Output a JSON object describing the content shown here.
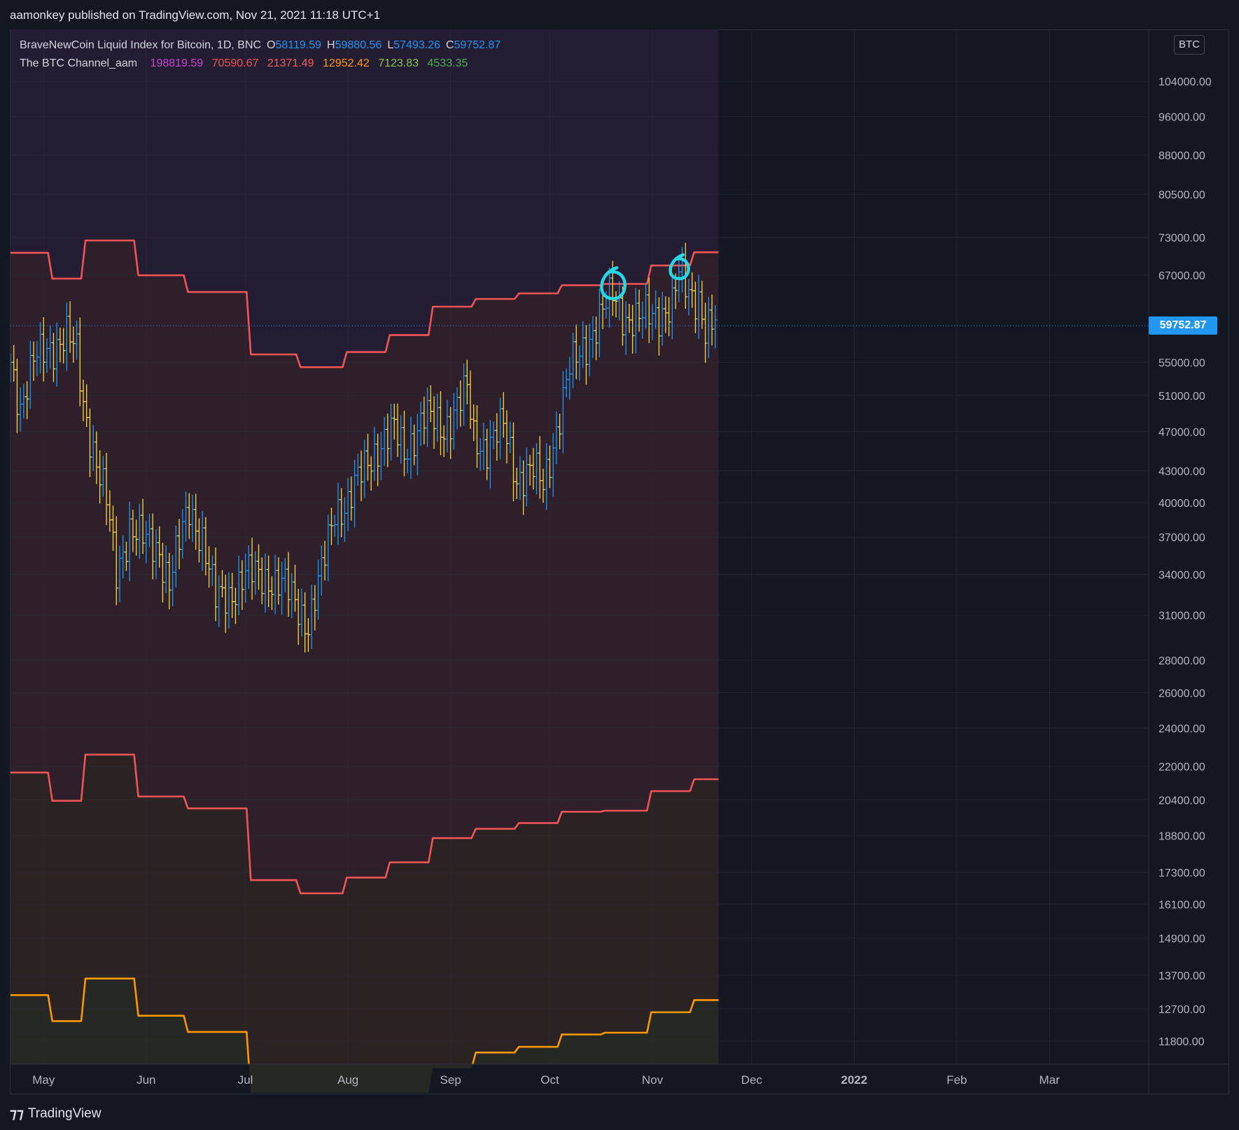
{
  "header": {
    "published": "aamonkey published on TradingView.com, Nov 21, 2021 11:18 UTC+1"
  },
  "legend": {
    "symbol": "BraveNewCoin Liquid Index for Bitcoin, 1D, BNC",
    "open_label": "O",
    "open": "58119.59",
    "high_label": "H",
    "high": "59880.56",
    "low_label": "L",
    "low": "57493.26",
    "close_label": "C",
    "close": "59752.87",
    "indicator_name": "The BTC Channel_aam",
    "indicator_values": [
      {
        "text": "198819.59",
        "color": "#c843d4"
      },
      {
        "text": "70590.67",
        "color": "#ef5350"
      },
      {
        "text": "21371.49",
        "color": "#f05f57"
      },
      {
        "text": "12952.42",
        "color": "#ff9800"
      },
      {
        "text": "7123.83",
        "color": "#8bc34a"
      },
      {
        "text": "4533.35",
        "color": "#4caf50"
      }
    ]
  },
  "currency_badge": "BTC",
  "last_price_tag": "59752.87",
  "footer": {
    "brand": "TradingView"
  },
  "colors": {
    "background": "#131722",
    "up_bar": "#2196f3",
    "down_bar": "#fdd835",
    "channel_red": "#f05454",
    "channel_orange": "#ff9800",
    "annotation": "#26d7e6"
  },
  "chart_data": {
    "type": "ohlc-bar",
    "scale": "log",
    "title": "BraveNewCoin Liquid Index for Bitcoin, 1D, BNC",
    "x_range": [
      "2021-04-21",
      "2022-03-31"
    ],
    "x_ticks": [
      {
        "date": "2021-05-01",
        "label": "May"
      },
      {
        "date": "2021-06-01",
        "label": "Jun"
      },
      {
        "date": "2021-07-01",
        "label": "Jul"
      },
      {
        "date": "2021-08-01",
        "label": "Aug"
      },
      {
        "date": "2021-09-01",
        "label": "Sep"
      },
      {
        "date": "2021-10-01",
        "label": "Oct"
      },
      {
        "date": "2021-11-01",
        "label": "Nov"
      },
      {
        "date": "2021-12-01",
        "label": "Dec"
      },
      {
        "date": "2022-01-01",
        "label": "2022"
      },
      {
        "date": "2022-02-01",
        "label": "Feb"
      },
      {
        "date": "2022-03-01",
        "label": "Mar"
      }
    ],
    "y_ticks": [
      104000,
      96000,
      88000,
      80500,
      73000,
      67000,
      55000,
      51000,
      47000,
      43000,
      40000,
      37000,
      34000,
      31000,
      28000,
      26000,
      24000,
      22000,
      20400,
      18800,
      17300,
      16100,
      14900,
      13700,
      12700,
      11800
    ],
    "y_range": [
      11200,
      117000
    ],
    "last_close": 59752.87,
    "price_path": [
      [
        "2021-04-21",
        55000
      ],
      [
        "2021-04-24",
        50000
      ],
      [
        "2021-04-28",
        55000
      ],
      [
        "2021-05-03",
        57000
      ],
      [
        "2021-05-08",
        58500
      ],
      [
        "2021-05-11",
        56000
      ],
      [
        "2021-05-13",
        50000
      ],
      [
        "2021-05-17",
        44000
      ],
      [
        "2021-05-20",
        40000
      ],
      [
        "2021-05-23",
        34000
      ],
      [
        "2021-05-27",
        38000
      ],
      [
        "2021-06-01",
        36500
      ],
      [
        "2021-06-05",
        36000
      ],
      [
        "2021-06-08",
        33500
      ],
      [
        "2021-06-14",
        39500
      ],
      [
        "2021-06-18",
        37000
      ],
      [
        "2021-06-22",
        32000
      ],
      [
        "2021-06-26",
        32500
      ],
      [
        "2021-07-01",
        34000
      ],
      [
        "2021-07-08",
        33800
      ],
      [
        "2021-07-13",
        33000
      ],
      [
        "2021-07-20",
        30500
      ],
      [
        "2021-07-24",
        34000
      ],
      [
        "2021-07-28",
        39500
      ],
      [
        "2021-08-01",
        40000
      ],
      [
        "2021-08-07",
        44000
      ],
      [
        "2021-08-10",
        45500
      ],
      [
        "2021-08-15",
        47000
      ],
      [
        "2021-08-18",
        45000
      ],
      [
        "2021-08-24",
        48500
      ],
      [
        "2021-08-30",
        47500
      ],
      [
        "2021-09-06",
        51500
      ],
      [
        "2021-09-08",
        46500
      ],
      [
        "2021-09-12",
        45500
      ],
      [
        "2021-09-17",
        47500
      ],
      [
        "2021-09-21",
        42500
      ],
      [
        "2021-09-26",
        43000
      ],
      [
        "2021-09-29",
        41500
      ],
      [
        "2021-10-04",
        49000
      ],
      [
        "2021-10-07",
        54000
      ],
      [
        "2021-10-10",
        56000
      ],
      [
        "2021-10-15",
        60000
      ],
      [
        "2021-10-20",
        64000
      ],
      [
        "2021-10-24",
        61000
      ],
      [
        "2021-10-28",
        60500
      ],
      [
        "2021-11-02",
        61500
      ],
      [
        "2021-11-07",
        62500
      ],
      [
        "2021-11-09",
        67000
      ],
      [
        "2021-11-12",
        64500
      ],
      [
        "2021-11-15",
        64000
      ],
      [
        "2021-11-17",
        59000
      ],
      [
        "2021-11-20",
        59752.87
      ]
    ],
    "series": [
      {
        "name": "The BTC Channel_aam",
        "color": "#f05454",
        "steps": [
          [
            "2021-04-21",
            70500
          ],
          [
            "2021-05-03",
            66500
          ],
          [
            "2021-05-13",
            72500
          ],
          [
            "2021-05-29",
            67000
          ],
          [
            "2021-06-13",
            64500
          ],
          [
            "2021-07-02",
            56000
          ],
          [
            "2021-07-17",
            54400
          ],
          [
            "2021-07-31",
            56300
          ],
          [
            "2021-08-13",
            58500
          ],
          [
            "2021-08-26",
            62400
          ],
          [
            "2021-09-08",
            63500
          ],
          [
            "2021-09-21",
            64300
          ],
          [
            "2021-10-04",
            65500
          ],
          [
            "2021-10-17",
            65700
          ],
          [
            "2021-10-31",
            68500
          ],
          [
            "2021-11-13",
            70590.67
          ],
          [
            "2021-11-20",
            70590.67
          ]
        ]
      },
      {
        "name": "The BTC Channel_aam",
        "color": "#f05454",
        "steps": [
          [
            "2021-04-21",
            21700
          ],
          [
            "2021-05-03",
            20350
          ],
          [
            "2021-05-13",
            22600
          ],
          [
            "2021-05-29",
            20550
          ],
          [
            "2021-06-13",
            20000
          ],
          [
            "2021-07-02",
            17000
          ],
          [
            "2021-07-17",
            16500
          ],
          [
            "2021-07-31",
            17100
          ],
          [
            "2021-08-13",
            17700
          ],
          [
            "2021-08-26",
            18700
          ],
          [
            "2021-09-08",
            19100
          ],
          [
            "2021-09-21",
            19350
          ],
          [
            "2021-10-04",
            19850
          ],
          [
            "2021-10-17",
            19900
          ],
          [
            "2021-10-31",
            20800
          ],
          [
            "2021-11-13",
            21371.49
          ],
          [
            "2021-11-20",
            21371.49
          ]
        ]
      },
      {
        "name": "The BTC Channel_aam",
        "color": "#ff9800",
        "steps": [
          [
            "2021-04-21",
            13100
          ],
          [
            "2021-05-03",
            12350
          ],
          [
            "2021-05-13",
            13600
          ],
          [
            "2021-05-29",
            12500
          ],
          [
            "2021-06-13",
            12050
          ],
          [
            "2021-07-02",
            10500
          ],
          [
            "2021-08-26",
            11100
          ],
          [
            "2021-09-08",
            11500
          ],
          [
            "2021-09-21",
            11650
          ],
          [
            "2021-10-04",
            11980
          ],
          [
            "2021-10-17",
            12030
          ],
          [
            "2021-10-31",
            12600
          ],
          [
            "2021-11-13",
            12952.42
          ],
          [
            "2021-11-20",
            12952.42
          ]
        ]
      }
    ],
    "annotations": [
      {
        "type": "circle",
        "date": "2021-10-20",
        "value": 65500,
        "color": "#26d7e6"
      },
      {
        "type": "circle",
        "date": "2021-11-09",
        "value": 68000,
        "color": "#26d7e6"
      }
    ]
  }
}
